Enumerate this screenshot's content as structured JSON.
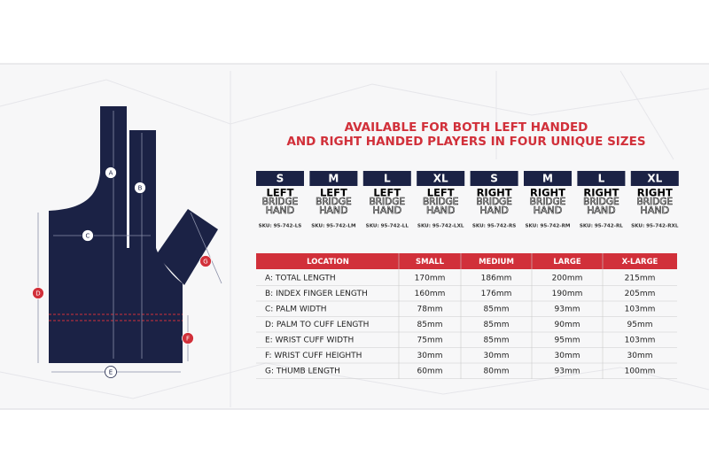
{
  "header": {
    "title_lines": [
      "AVAILABLE FOR BOTH LEFT HANDED",
      "AND RIGHT HANDED PLAYERS IN FOUR UNIQUE SIZES"
    ]
  },
  "diagram": {
    "labels": [
      "A",
      "B",
      "C",
      "D",
      "E",
      "F",
      "G"
    ]
  },
  "sizes": [
    {
      "size": "S",
      "hand": "LEFT",
      "bridge": "BRIDGE",
      "word": "HAND",
      "sku": "SKU: 95-742-LS"
    },
    {
      "size": "M",
      "hand": "LEFT",
      "bridge": "BRIDGE",
      "word": "HAND",
      "sku": "SKU: 95-742-LM"
    },
    {
      "size": "L",
      "hand": "LEFT",
      "bridge": "BRIDGE",
      "word": "HAND",
      "sku": "SKU: 95-742-LL"
    },
    {
      "size": "XL",
      "hand": "LEFT",
      "bridge": "BRIDGE",
      "word": "HAND",
      "sku": "SKU: 95-742-LXL"
    },
    {
      "size": "S",
      "hand": "RIGHT",
      "bridge": "BRIDGE",
      "word": "HAND",
      "sku": "SKU: 95-742-RS"
    },
    {
      "size": "M",
      "hand": "RIGHT",
      "bridge": "BRIDGE",
      "word": "HAND",
      "sku": "SKU: 95-742-RM"
    },
    {
      "size": "L",
      "hand": "RIGHT",
      "bridge": "BRIDGE",
      "word": "HAND",
      "sku": "SKU: 95-742-RL"
    },
    {
      "size": "XL",
      "hand": "RIGHT",
      "bridge": "BRIDGE",
      "word": "HAND",
      "sku": "SKU: 95-742-RXL"
    }
  ],
  "table": {
    "columns": [
      "LOCATION",
      "SMALL",
      "MEDIUM",
      "LARGE",
      "X-LARGE"
    ],
    "rows": [
      [
        "A: TOTAL LENGTH",
        "170mm",
        "186mm",
        "200mm",
        "215mm"
      ],
      [
        "B: INDEX FINGER LENGTH",
        "160mm",
        "176mm",
        "190mm",
        "205mm"
      ],
      [
        "C: PALM WIDTH",
        "78mm",
        "85mm",
        "93mm",
        "103mm"
      ],
      [
        "D: PALM TO CUFF LENGTH",
        "85mm",
        "85mm",
        "90mm",
        "95mm"
      ],
      [
        "E: WRIST CUFF WIDTH",
        "75mm",
        "85mm",
        "95mm",
        "103mm"
      ],
      [
        "F: WRIST CUFF HEIGHTH",
        "30mm",
        "30mm",
        "30mm",
        "30mm"
      ],
      [
        "G: THUMB LENGTH",
        "60mm",
        "80mm",
        "93mm",
        "100mm"
      ]
    ]
  }
}
